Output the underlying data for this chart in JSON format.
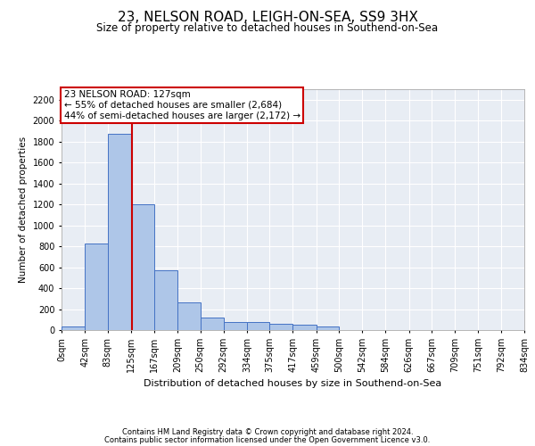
{
  "title": "23, NELSON ROAD, LEIGH-ON-SEA, SS9 3HX",
  "subtitle": "Size of property relative to detached houses in Southend-on-Sea",
  "xlabel": "Distribution of detached houses by size in Southend-on-Sea",
  "ylabel": "Number of detached properties",
  "footer_line1": "Contains HM Land Registry data © Crown copyright and database right 2024.",
  "footer_line2": "Contains public sector information licensed under the Open Government Licence v3.0.",
  "annotation_title": "23 NELSON ROAD: 127sqm",
  "annotation_line1": "← 55% of detached houses are smaller (2,684)",
  "annotation_line2": "44% of semi-detached houses are larger (2,172) →",
  "bar_edges": [
    0,
    42,
    83,
    125,
    167,
    209,
    250,
    292,
    334,
    375,
    417,
    459,
    500,
    542,
    584,
    626,
    667,
    709,
    751,
    792,
    834
  ],
  "bar_heights": [
    30,
    830,
    1870,
    1200,
    570,
    260,
    120,
    75,
    75,
    60,
    55,
    35,
    0,
    0,
    0,
    0,
    0,
    0,
    0,
    0
  ],
  "bar_color": "#aec6e8",
  "bar_edge_color": "#4472c4",
  "vline_x": 127,
  "vline_color": "#cc0000",
  "annotation_box_color": "#cc0000",
  "background_color": "#e8edf4",
  "ylim": [
    0,
    2300
  ],
  "yticks": [
    0,
    200,
    400,
    600,
    800,
    1000,
    1200,
    1400,
    1600,
    1800,
    2000,
    2200
  ],
  "grid_color": "#ffffff",
  "title_fontsize": 11,
  "subtitle_fontsize": 8.5,
  "ylabel_fontsize": 7.5,
  "xlabel_fontsize": 8,
  "tick_fontsize": 7,
  "annotation_fontsize": 7.5,
  "footer_fontsize": 6
}
